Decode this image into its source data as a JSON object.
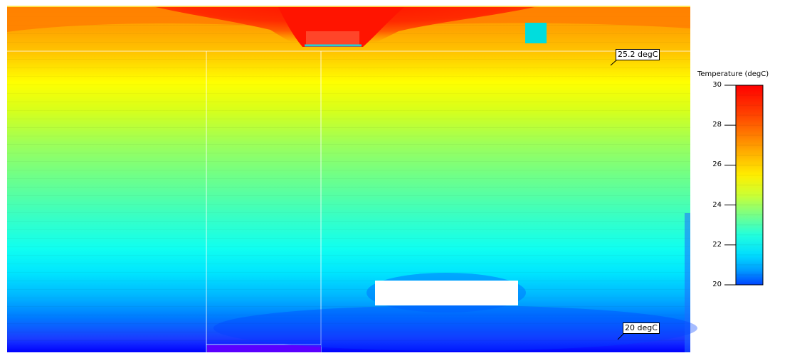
{
  "legend": {
    "title": "Temperature (degC)",
    "min": 20,
    "max": 30,
    "ticks": [
      "30",
      "28",
      "26",
      "24",
      "22",
      "20"
    ]
  },
  "probes": {
    "upper": "25.2 degC",
    "lower": "20 degC"
  },
  "colors": {
    "hot": "#ff1a00",
    "warm": "#ffa500",
    "mid": "#ffff00",
    "cool": "#00ffff",
    "cold": "#0000ff",
    "inlet": "#00dddd",
    "floor_strip": "#5a00ff",
    "obstacle": "#ffffff"
  }
}
